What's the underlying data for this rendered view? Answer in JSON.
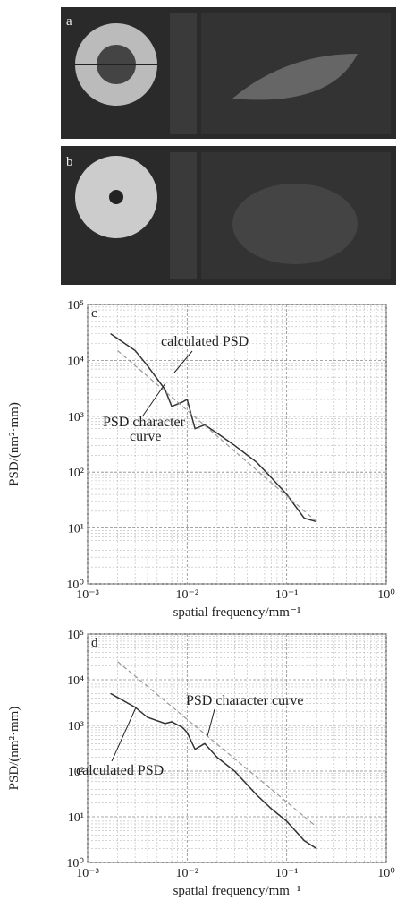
{
  "panels": [
    {
      "label": "a"
    },
    {
      "label": "b"
    }
  ],
  "chart_data": [
    {
      "type": "line",
      "panel_label": "c",
      "xlabel": "spatial frequency/mm⁻¹",
      "ylabel": "PSD/(nm²·mm)",
      "log_x": true,
      "log_y": true,
      "grid": true,
      "xlim": [
        0.001,
        1
      ],
      "ylim": [
        1,
        100000
      ],
      "xticks": [
        {
          "value": 0.001,
          "label": "10⁻³"
        },
        {
          "value": 0.01,
          "label": "10⁻²"
        },
        {
          "value": 0.1,
          "label": "10⁻¹"
        },
        {
          "value": 1,
          "label": "10⁰"
        }
      ],
      "yticks": [
        {
          "value": 1,
          "label": "10⁰"
        },
        {
          "value": 10,
          "label": "10¹"
        },
        {
          "value": 100,
          "label": "10²"
        },
        {
          "value": 1000,
          "label": "10³"
        },
        {
          "value": 10000,
          "label": "10⁴"
        },
        {
          "value": 100000,
          "label": "10⁵"
        }
      ],
      "annotations": [
        "calculated PSD",
        "PSD character",
        "curve"
      ],
      "series": [
        {
          "color": "#333333",
          "x": [
            0.0017,
            0.003,
            0.004,
            0.006,
            0.007,
            0.009,
            0.01,
            0.012,
            0.015,
            0.02,
            0.03,
            0.05,
            0.07,
            0.1,
            0.15,
            0.2
          ],
          "values": [
            30000,
            15000,
            8000,
            3000,
            1500,
            1800,
            2000,
            600,
            700,
            500,
            300,
            150,
            80,
            40,
            15,
            13
          ]
        },
        {
          "color": "#999999",
          "x": [
            0.002,
            0.2
          ],
          "values": [
            15000,
            13
          ]
        }
      ]
    },
    {
      "type": "line",
      "panel_label": "d",
      "xlabel": "spatial frequency/mm⁻¹",
      "ylabel": "PSD/(nm²·mm)",
      "log_x": true,
      "log_y": true,
      "grid": true,
      "xlim": [
        0.001,
        1
      ],
      "ylim": [
        1,
        100000
      ],
      "xticks": [
        {
          "value": 0.001,
          "label": "10⁻³"
        },
        {
          "value": 0.01,
          "label": "10⁻²"
        },
        {
          "value": 0.1,
          "label": "10⁻¹"
        },
        {
          "value": 1,
          "label": "10⁰"
        }
      ],
      "yticks": [
        {
          "value": 1,
          "label": "10⁰"
        },
        {
          "value": 10,
          "label": "10¹"
        },
        {
          "value": 100,
          "label": "10²"
        },
        {
          "value": 1000,
          "label": "10³"
        },
        {
          "value": 10000,
          "label": "10⁴"
        },
        {
          "value": 100000,
          "label": "10⁵"
        }
      ],
      "annotations": [
        "PSD character curve",
        "calculated PSD"
      ],
      "series": [
        {
          "color": "#333333",
          "x": [
            0.0017,
            0.003,
            0.004,
            0.006,
            0.007,
            0.009,
            0.01,
            0.012,
            0.015,
            0.02,
            0.03,
            0.05,
            0.07,
            0.1,
            0.15,
            0.2
          ],
          "values": [
            5000,
            2500,
            1500,
            1100,
            1200,
            900,
            700,
            300,
            400,
            200,
            100,
            30,
            15,
            8,
            3,
            2
          ]
        },
        {
          "color": "#999999",
          "x": [
            0.002,
            0.2
          ],
          "values": [
            25000,
            6
          ]
        }
      ]
    }
  ]
}
